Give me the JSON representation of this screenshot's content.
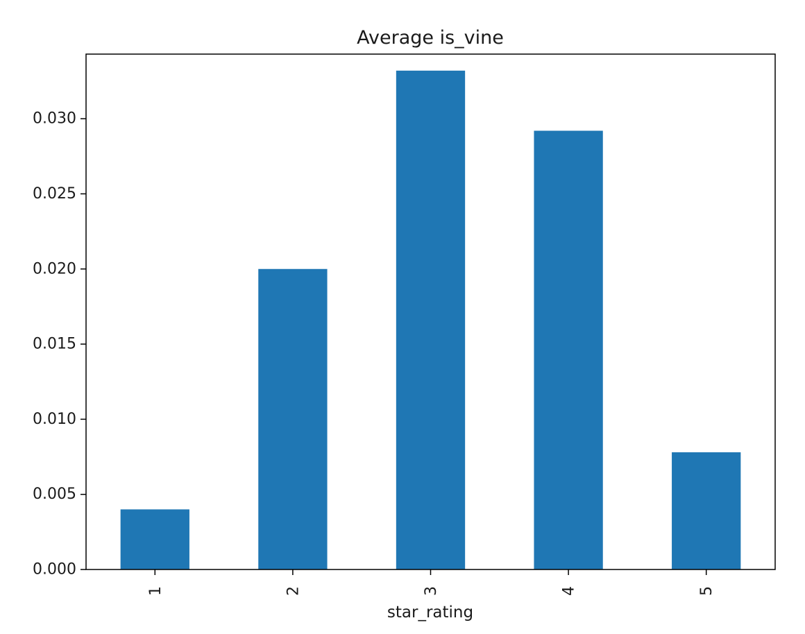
{
  "chart_data": {
    "type": "bar",
    "title": "Average is_vine",
    "xlabel": "star_rating",
    "ylabel": "",
    "categories": [
      "1",
      "2",
      "3",
      "4",
      "5"
    ],
    "values": [
      0.004,
      0.02,
      0.0332,
      0.0292,
      0.0078
    ],
    "ylim": [
      0,
      0.0343
    ],
    "yticks": [
      0.0,
      0.005,
      0.01,
      0.015,
      0.02,
      0.025,
      0.03
    ],
    "ytick_labels": [
      "0.000",
      "0.005",
      "0.010",
      "0.015",
      "0.020",
      "0.025",
      "0.030"
    ],
    "bar_color": "#1f77b4",
    "grid": false,
    "legend": "none"
  }
}
